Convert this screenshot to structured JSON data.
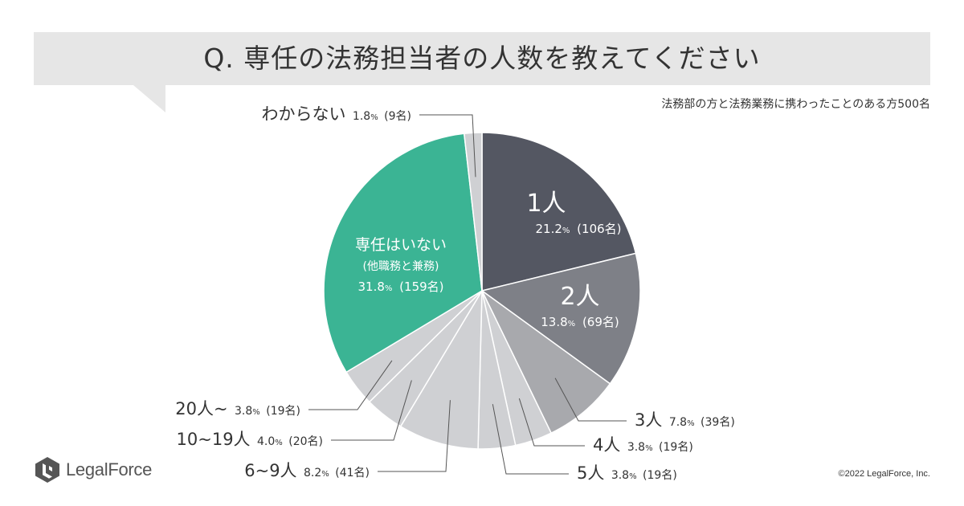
{
  "title": "Q. 専任の法務担当者の人数を教えてください",
  "subtitle": "法務部の方と法務業務に携わったことのある方500名",
  "copyright": "©2022 LegalForce, Inc.",
  "logo_text": "LegalForce",
  "chart_data": {
    "type": "pie",
    "title": "Q. 専任の法務担当者の人数を教えてください",
    "total": 500,
    "start": "top, clockwise",
    "slices": [
      {
        "label": "1人",
        "pct": "21.2",
        "count": "(106名)",
        "value": 21.2,
        "color": "#545762"
      },
      {
        "label": "2人",
        "pct": "13.8",
        "count": "(69名)",
        "value": 13.8,
        "color": "#7e8087"
      },
      {
        "label": "3人",
        "pct": "7.8",
        "count": "(39名)",
        "value": 7.8,
        "color": "#a8a9ad"
      },
      {
        "label": "4人",
        "pct": "3.8",
        "count": "(19名)",
        "value": 3.8,
        "color": "#cfd0d3"
      },
      {
        "label": "5人",
        "pct": "3.8",
        "count": "(19名)",
        "value": 3.8,
        "color": "#cfd0d3"
      },
      {
        "label": "6~9人",
        "pct": "8.2",
        "count": "(41名)",
        "value": 8.2,
        "color": "#cfd0d3"
      },
      {
        "label": "10~19人",
        "pct": "4.0",
        "count": "(20名)",
        "value": 4.0,
        "color": "#cfd0d3"
      },
      {
        "label": "20人~",
        "pct": "3.8",
        "count": "(19名)",
        "value": 3.8,
        "color": "#cfd0d3"
      },
      {
        "label": "専任はいない",
        "sublabel": "(他職務と兼務)",
        "pct": "31.8",
        "count": "(159名)",
        "value": 31.8,
        "color": "#3bb494"
      },
      {
        "label": "わからない",
        "pct": "1.8",
        "count": "(9名)",
        "value": 1.8,
        "color": "#cfd0d3"
      }
    ]
  }
}
